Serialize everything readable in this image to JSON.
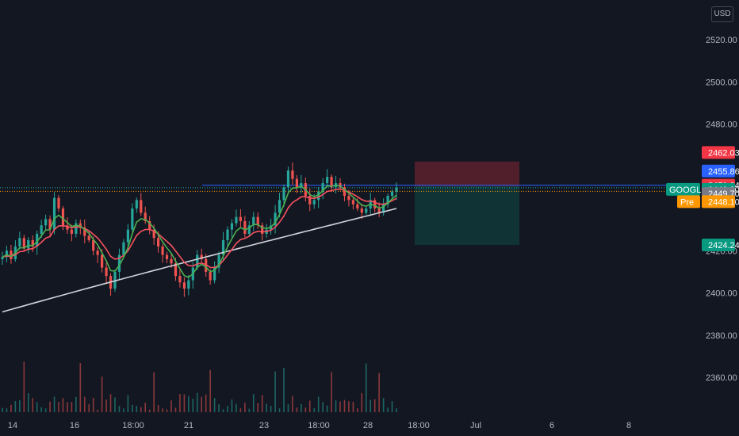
{
  "currency": "USD",
  "chart_data": {
    "type": "candlestick",
    "symbol": "GOOGL",
    "y_axis": {
      "range": [
        2346,
        2528
      ],
      "ticks": [
        "2520.00",
        "2500.00",
        "2480.00",
        "2420.00",
        "2400.00",
        "2380.00",
        "2360.00"
      ],
      "tick_values": [
        2520,
        2500,
        2480,
        2420,
        2400,
        2380,
        2360
      ]
    },
    "x_axis": {
      "ticks": [
        "14",
        "16",
        "18:00",
        "21",
        "23",
        "18:00",
        "28",
        "18:00",
        "Jul",
        "6",
        "8"
      ]
    },
    "price_tags": [
      {
        "label": "",
        "value": "2462.03",
        "price": 2462.03,
        "color": "#f23645"
      },
      {
        "label": "",
        "value": "2455.86",
        "price": 2455.86,
        "color": "#2962ff"
      },
      {
        "label": "",
        "value": "2451.04",
        "price": 2451.04,
        "color": "#f23645"
      },
      {
        "label": "GOOGL",
        "value": "2449.80",
        "price": 2449.8,
        "color": "#089981"
      },
      {
        "label": "",
        "value": "2449.70",
        "price": 2449.7,
        "color": "#787b86"
      },
      {
        "label": "Pre",
        "value": "2448.10",
        "price": 2448.1,
        "color": "#ff9800"
      },
      {
        "label": "",
        "value": "2424.24",
        "price": 2424.24,
        "color": "#089981"
      }
    ],
    "horizontal_line": {
      "price": 2451.04,
      "color": "#2962ff"
    },
    "dotted_lines": [
      {
        "price": 2449.8,
        "color": "#26a69a"
      },
      {
        "price": 2448.1,
        "color": "#ff9800"
      }
    ],
    "position_tool": {
      "entry": 2449.8,
      "stop": 2455.86,
      "target": 2424.24,
      "loss_color": "rgba(242,54,69,0.28)",
      "profit_color": "rgba(8,153,129,0.22)"
    },
    "series": [
      {
        "name": "",
        "type": "sma",
        "color": "#d1d4dc"
      },
      {
        "name": "",
        "type": "ema",
        "color": "#f7525f"
      },
      {
        "name": "",
        "type": "ema",
        "color": "#4caf50"
      }
    ],
    "candles_close": [
      2417,
      2420,
      2416,
      2422,
      2426,
      2421,
      2425,
      2422,
      2428,
      2432,
      2435,
      2430,
      2445,
      2440,
      2432,
      2430,
      2428,
      2433,
      2431,
      2427,
      2425,
      2420,
      2418,
      2412,
      2408,
      2402,
      2410,
      2418,
      2424,
      2430,
      2440,
      2444,
      2438,
      2434,
      2430,
      2426,
      2422,
      2418,
      2416,
      2414,
      2408,
      2405,
      2402,
      2406,
      2412,
      2418,
      2416,
      2410,
      2406,
      2412,
      2418,
      2425,
      2430,
      2433,
      2436,
      2434,
      2428,
      2432,
      2436,
      2432,
      2428,
      2430,
      2432,
      2438,
      2444,
      2450,
      2458,
      2454,
      2450,
      2452,
      2446,
      2442,
      2444,
      2448,
      2452,
      2455,
      2450,
      2452,
      2450,
      2446,
      2444,
      2442,
      2440,
      2438,
      2440,
      2444,
      2440,
      2438,
      2442,
      2446,
      2448,
      2449.8
    ],
    "accent_colors": {
      "up": "#26a69a",
      "down": "#ef5350",
      "grid": "#1e222d",
      "axis_text": "#b2b5be",
      "background": "#131722"
    }
  }
}
